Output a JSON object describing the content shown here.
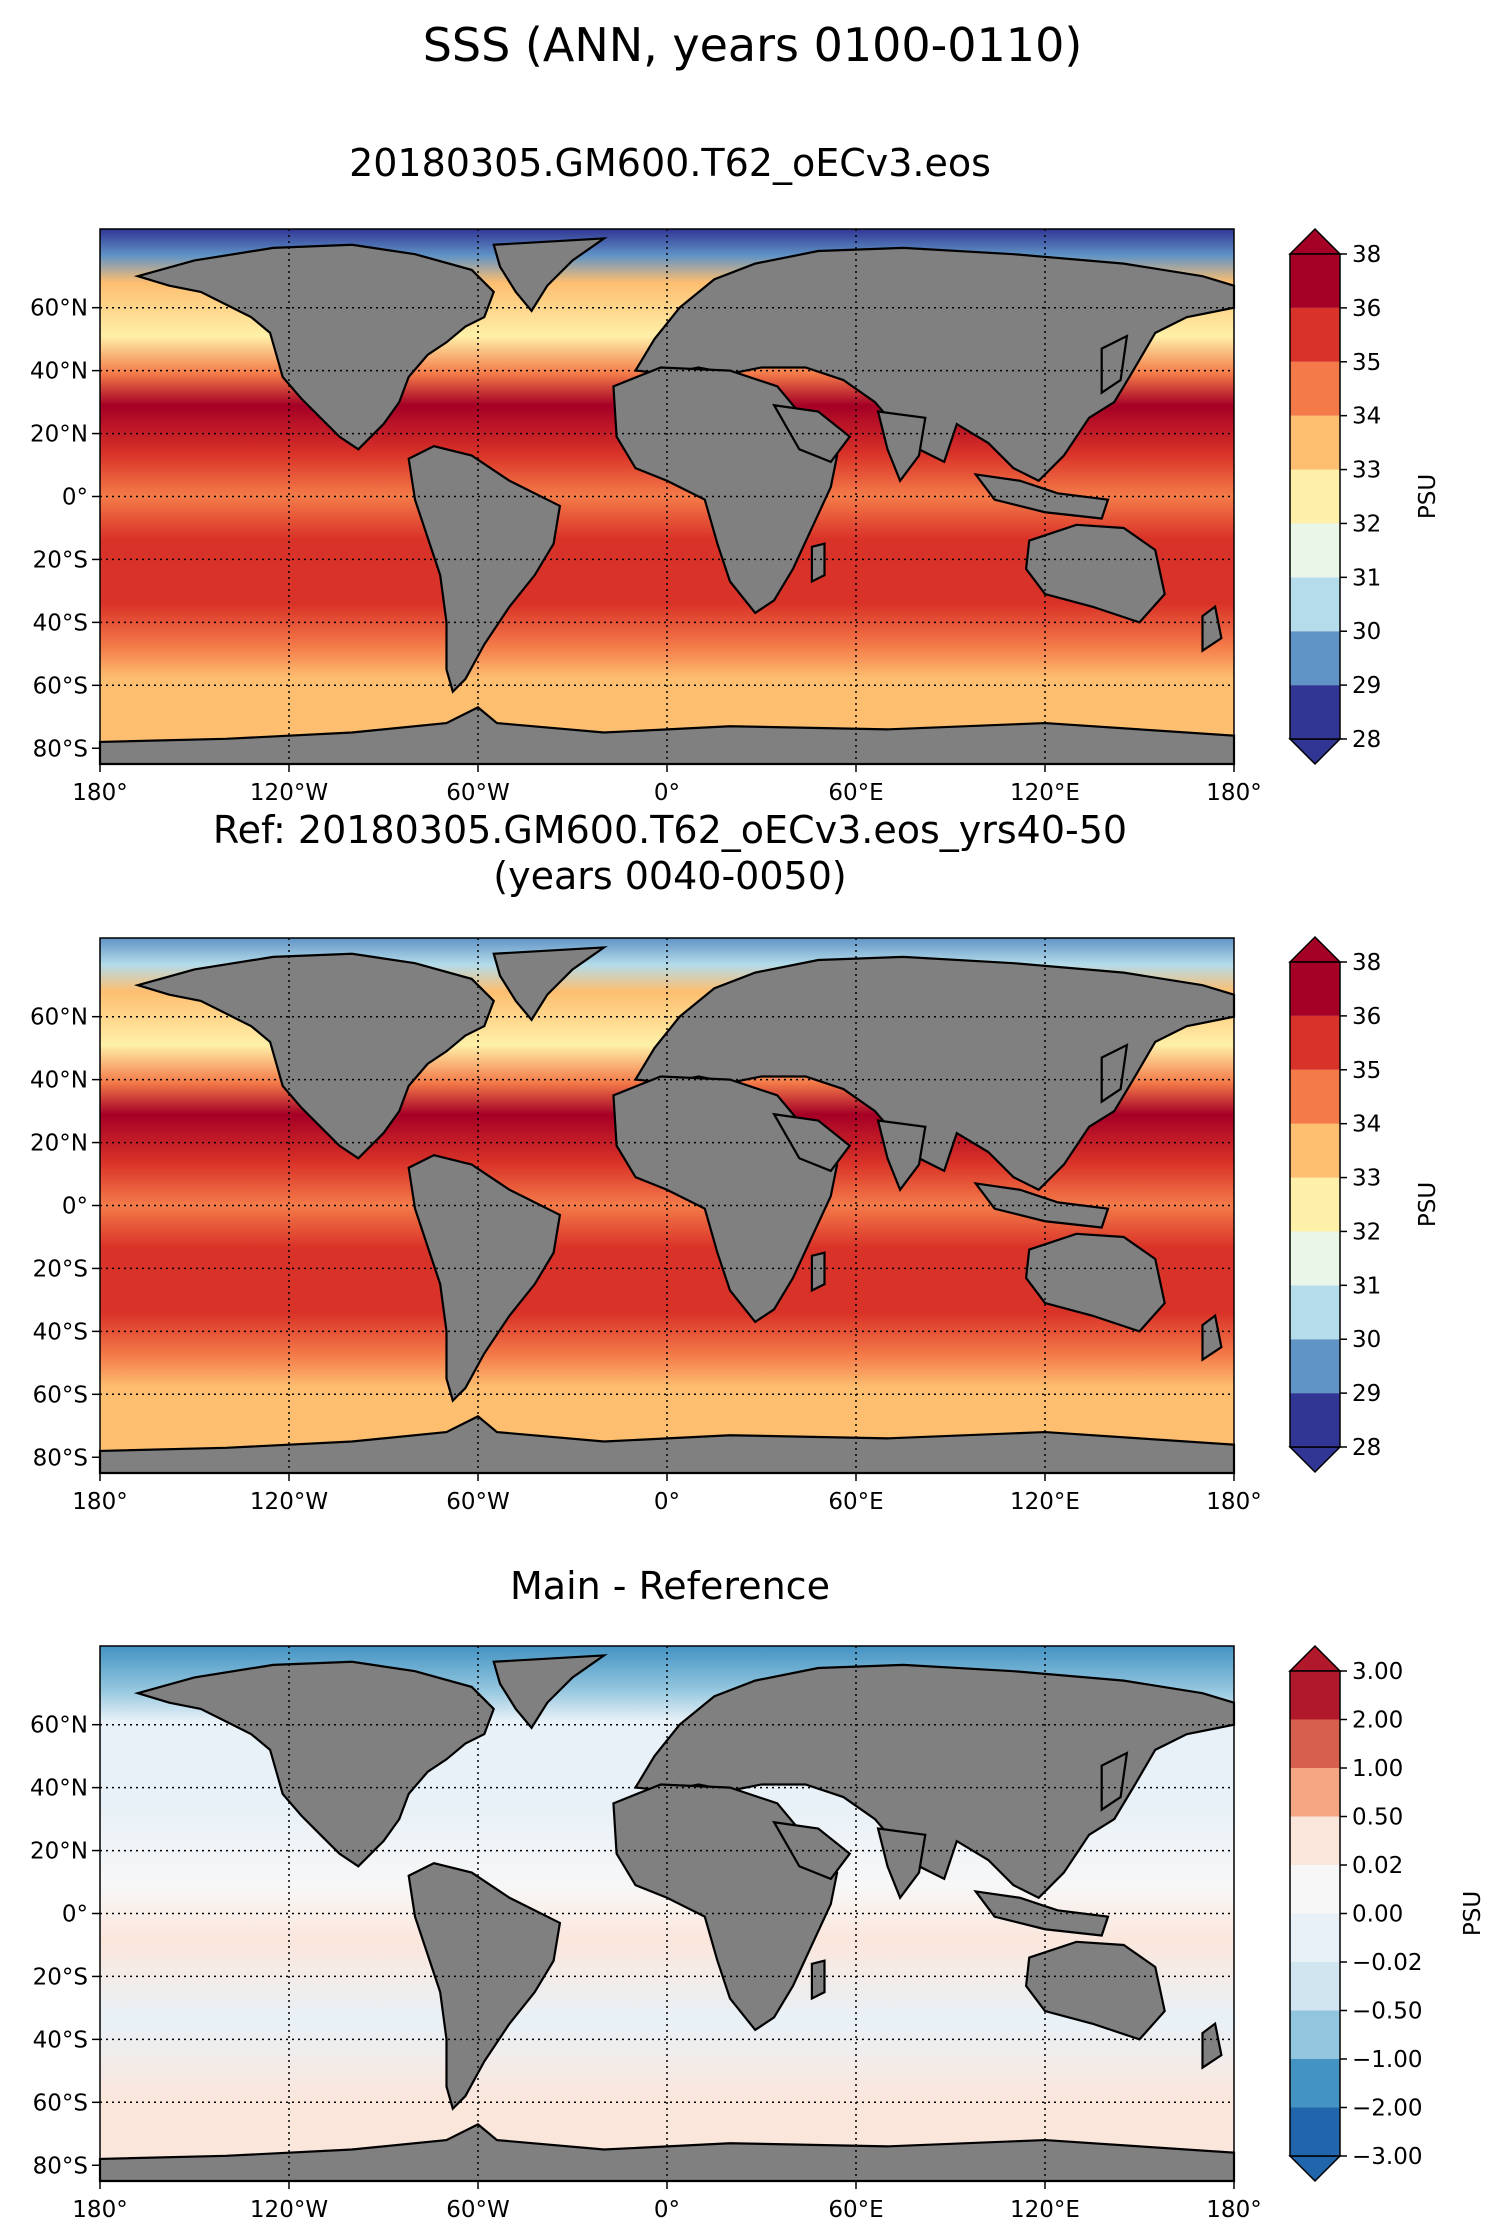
{
  "figure_title": "SSS (ANN, years 0100-0110)",
  "panels": [
    {
      "id": "main",
      "title_lines": [
        "20180305.GM600.T62_oECv3.eos"
      ],
      "colorbar_label": "PSU",
      "colorbar_ticks": [
        "28",
        "29",
        "30",
        "31",
        "32",
        "33",
        "34",
        "35",
        "36",
        "38"
      ],
      "colorbar_colors": [
        "#313695",
        "#6094c6",
        "#b4dcea",
        "#e9f6e8",
        "#fef0a8",
        "#fdbe70",
        "#f47b49",
        "#d93228",
        "#a50026"
      ]
    },
    {
      "id": "reference",
      "title_lines": [
        "Ref: 20180305.GM600.T62_oECv3.eos_yrs40-50",
        "(years 0040-0050)"
      ],
      "colorbar_label": "PSU",
      "colorbar_ticks": [
        "28",
        "29",
        "30",
        "31",
        "32",
        "33",
        "34",
        "35",
        "36",
        "38"
      ],
      "colorbar_colors": [
        "#313695",
        "#6094c6",
        "#b4dcea",
        "#e9f6e8",
        "#fef0a8",
        "#fdbe70",
        "#f47b49",
        "#d93228",
        "#a50026"
      ]
    },
    {
      "id": "difference",
      "title_lines": [
        "Main - Reference"
      ],
      "colorbar_label": "PSU",
      "colorbar_ticks": [
        "−3.00",
        "−2.00",
        "−1.00",
        "−0.50",
        "−0.02",
        "0.00",
        "0.02",
        "0.50",
        "1.00",
        "2.00",
        "3.00"
      ],
      "colorbar_colors": [
        "#2166ac",
        "#4393c3",
        "#92c5de",
        "#d1e5f0",
        "#e8f1f7",
        "#f7f7f7",
        "#fbe6dc",
        "#f4a582",
        "#d6604d",
        "#b2182b"
      ]
    }
  ],
  "axes": {
    "lon_ticks": [
      "180°",
      "120°W",
      "60°W",
      "0°",
      "60°E",
      "120°E",
      "180°"
    ],
    "lat_ticks": [
      "60°N",
      "40°N",
      "20°N",
      "0°",
      "20°S",
      "40°S",
      "60°S",
      "80°S"
    ],
    "lon_range": [
      -180,
      180
    ],
    "lat_range": [
      -85,
      85
    ],
    "gridlines": "dotted"
  },
  "colors": {
    "land": "#808080",
    "coast": "#000000"
  },
  "chart_data": [
    {
      "type": "heatmap",
      "title": "20180305.GM600.T62_oECv3.eos",
      "colorbar": {
        "label": "PSU",
        "levels": [
          28,
          29,
          30,
          31,
          32,
          33,
          34,
          35,
          36,
          38
        ],
        "extend": "both"
      }
    },
    {
      "type": "heatmap",
      "title": "Ref: 20180305.GM600.T62_oECv3.eos_yrs40-50 (years 0040-0050)",
      "colorbar": {
        "label": "PSU",
        "levels": [
          28,
          29,
          30,
          31,
          32,
          33,
          34,
          35,
          36,
          38
        ],
        "extend": "both"
      }
    },
    {
      "type": "heatmap",
      "title": "Main - Reference",
      "colorbar": {
        "label": "PSU",
        "levels": [
          -3.0,
          -2.0,
          -1.0,
          -0.5,
          -0.02,
          0.0,
          0.02,
          0.5,
          1.0,
          2.0,
          3.0
        ],
        "extend": "both"
      }
    }
  ]
}
